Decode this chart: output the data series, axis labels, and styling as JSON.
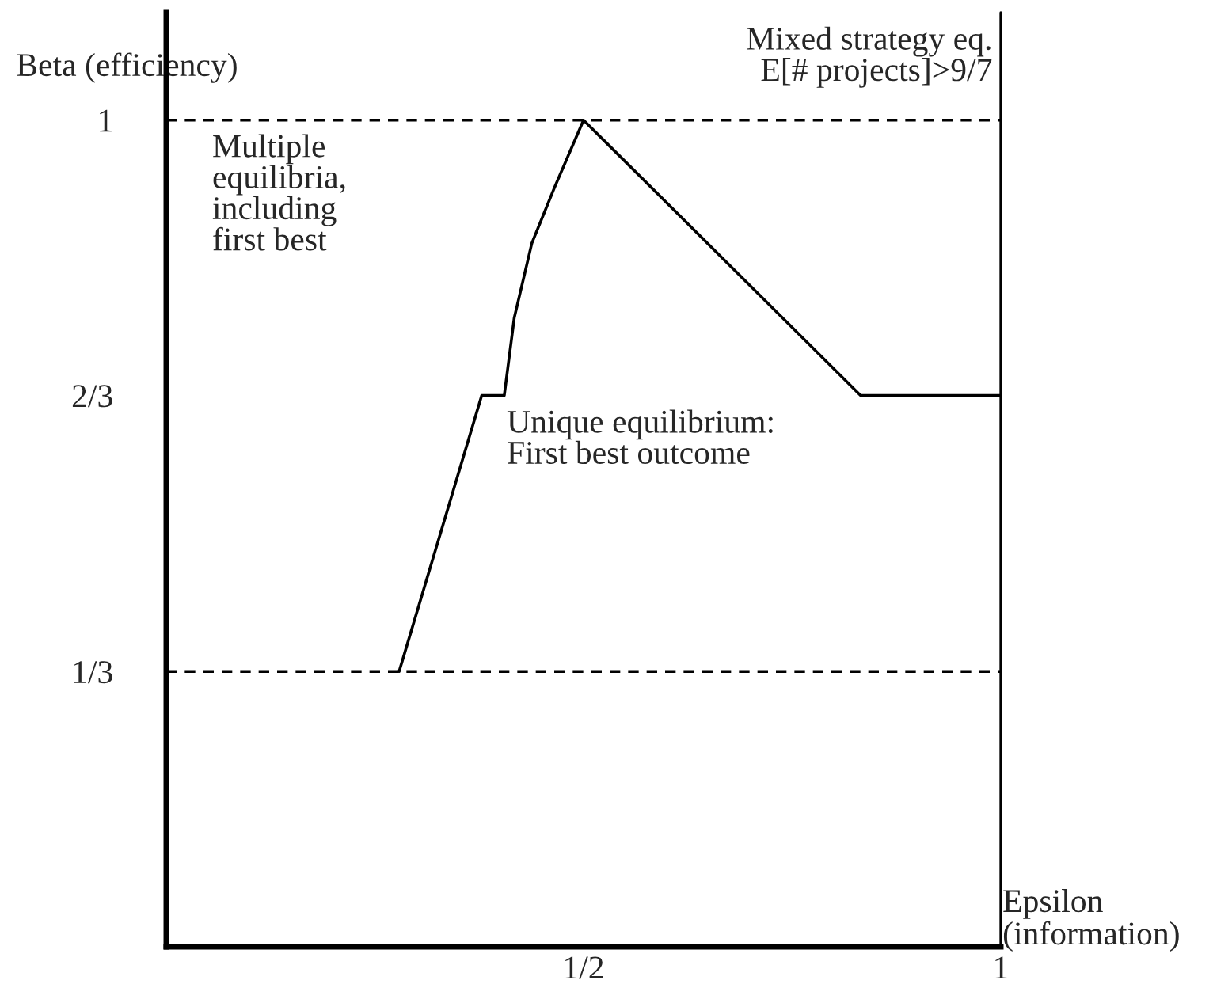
{
  "chart_data": {
    "type": "line",
    "xlabel": "Epsilon\n(information)",
    "ylabel": "Beta (efficiency)",
    "x": [
      0.279,
      0.378,
      0.405,
      0.417,
      0.438,
      0.465,
      0.5,
      0.832,
      1.0
    ],
    "series": [
      {
        "color": "#000000",
        "values": [
          0.333,
          0.667,
          0.667,
          0.761,
          0.851,
          0.918,
          1.0,
          0.667,
          0.667
        ]
      }
    ],
    "xlim": [
      0,
      1
    ],
    "ylim": [
      0,
      1.13
    ],
    "xticks": [
      {
        "value": 0.5,
        "label": "1/2"
      },
      1
    ],
    "yticks": [
      {
        "value": 0.333,
        "label": "1/3"
      },
      {
        "value": 0.667,
        "label": "2/3"
      },
      1
    ],
    "ref_lines": [
      {
        "axis": "y",
        "value": 1,
        "line_style": "dashed",
        "color": "#000000"
      },
      {
        "axis": "y",
        "value": 0.333,
        "line_style": "dashed",
        "color": "#000000"
      },
      {
        "axis": "x",
        "value": 1,
        "line_style": "solid",
        "color": "#000000"
      }
    ],
    "annotations": [
      "Multiple\nequilibria,\nincluding\nfirst best",
      "Mixed strategy eq.\nE[# projects]>9/7",
      "Unique equilibrium:\nFirst best outcome"
    ],
    "grid": false,
    "legend": false,
    "marker": "none",
    "line_style": "solid"
  }
}
